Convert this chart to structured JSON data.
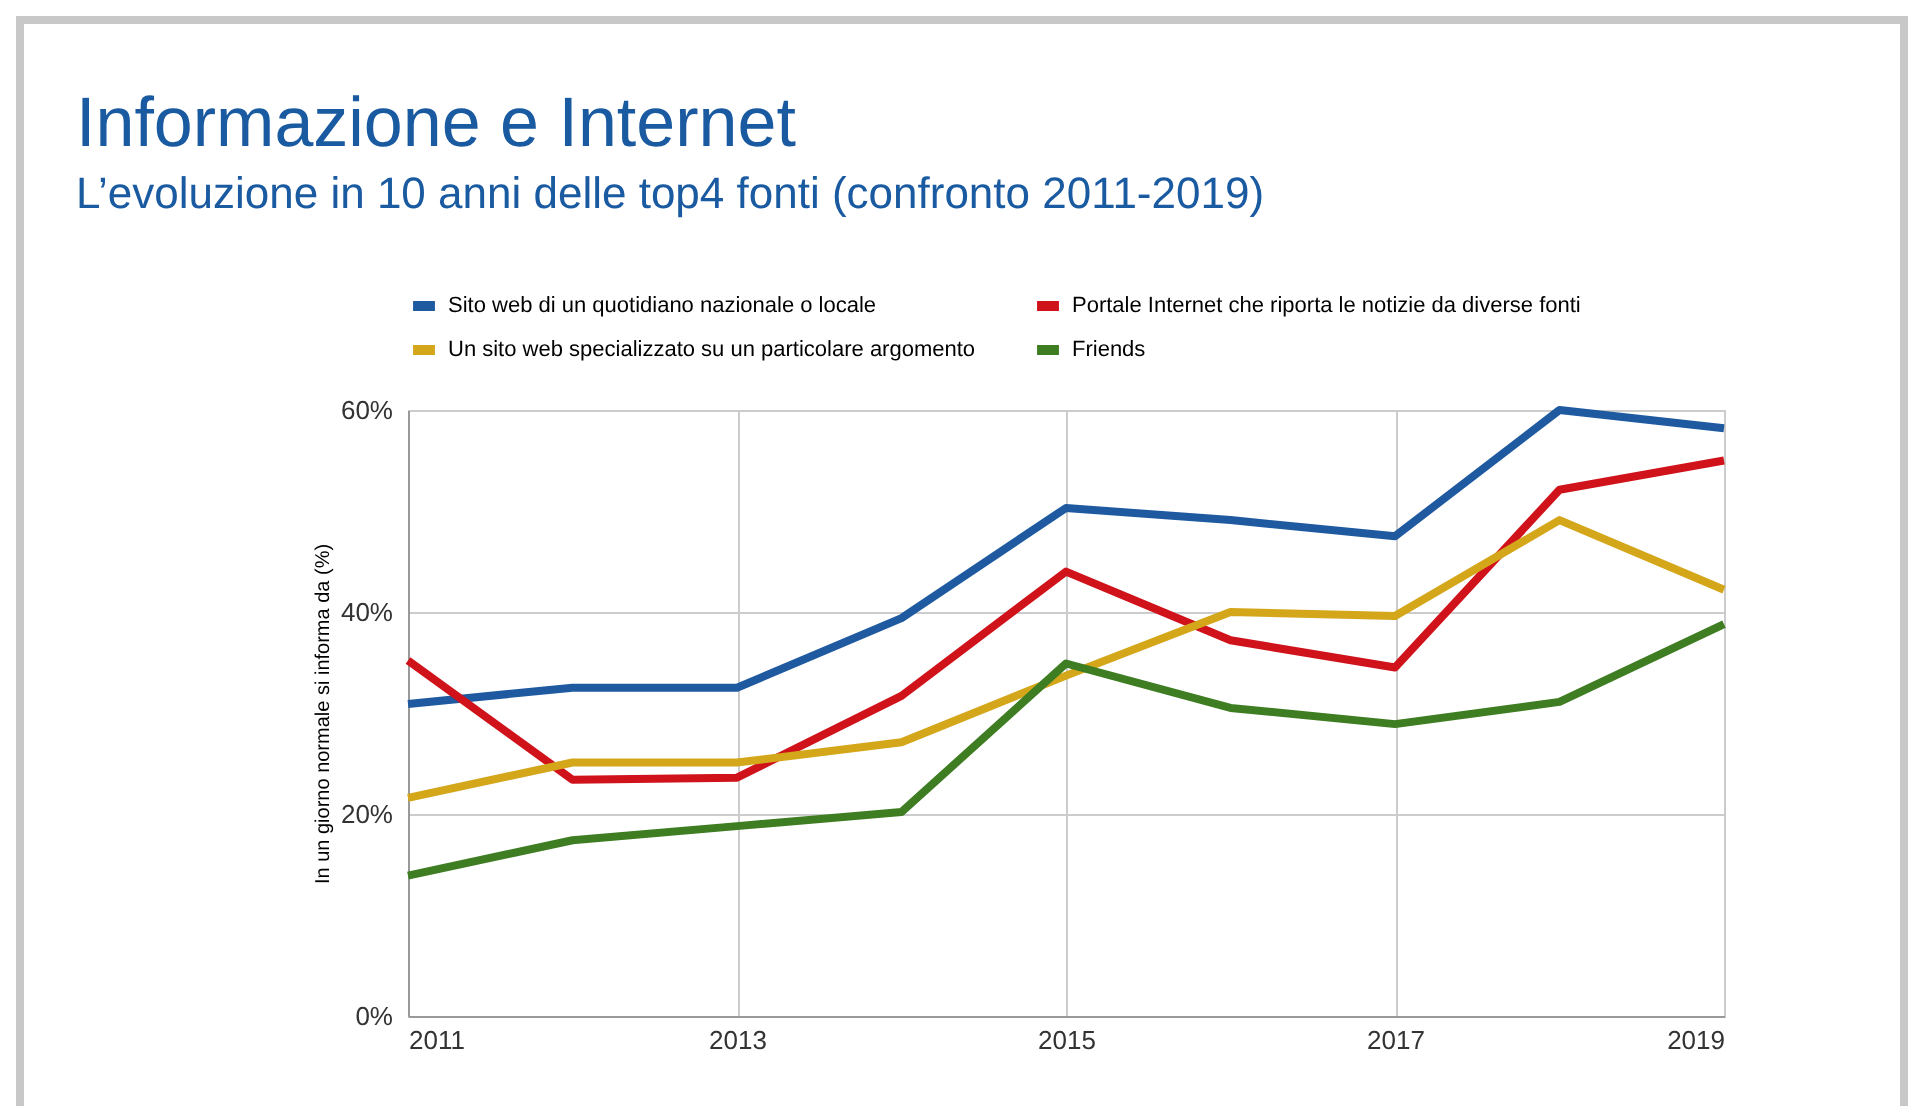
{
  "chart_data": {
    "type": "line",
    "title": "Informazione e Internet",
    "subtitle": "L’evoluzione in 10 anni delle top4 fonti (confronto 2011-2019)",
    "ylabel": "In un giorno normale si informa da (%)",
    "x": [
      2011,
      2012,
      2013,
      2014,
      2015,
      2016,
      2017,
      2018,
      2019
    ],
    "series": [
      {
        "name": "Sito web di un quotidiano nazionale o locale",
        "color": "#1f5aa0",
        "values": [
          30.9,
          32.5,
          32.5,
          39.4,
          50.3,
          49.1,
          47.5,
          60,
          58.2
        ]
      },
      {
        "name": "Portale Internet che riporta le notizie da diverse fonti",
        "color": "#d0121b",
        "values": [
          35.2,
          23.4,
          23.6,
          31.7,
          44,
          37.2,
          34.5,
          52.1,
          55
        ]
      },
      {
        "name": "Un sito web specializzato su un particolare argomento",
        "color": "#d4a61a",
        "values": [
          21.6,
          25.1,
          25.1,
          27.1,
          33.7,
          40,
          39.6,
          49.1,
          42.2
        ]
      },
      {
        "name": "Friends",
        "color": "#3e7d22",
        "values": [
          13.9,
          17.4,
          18.8,
          20.2,
          34.9,
          30.5,
          28.9,
          31.1,
          38.8
        ]
      }
    ],
    "xlim": [
      2011,
      2019
    ],
    "xticks": [
      2011,
      2013,
      2015,
      2017,
      2019
    ],
    "ylim": [
      0,
      60
    ],
    "yticks": [
      {
        "value": 0,
        "label": "0%"
      },
      {
        "value": 20,
        "label": "20%"
      },
      {
        "value": 40,
        "label": "40%"
      },
      {
        "value": 60,
        "label": "60%"
      }
    ],
    "grid": true,
    "legend": "top",
    "line_style": "solid",
    "marker": "none"
  }
}
